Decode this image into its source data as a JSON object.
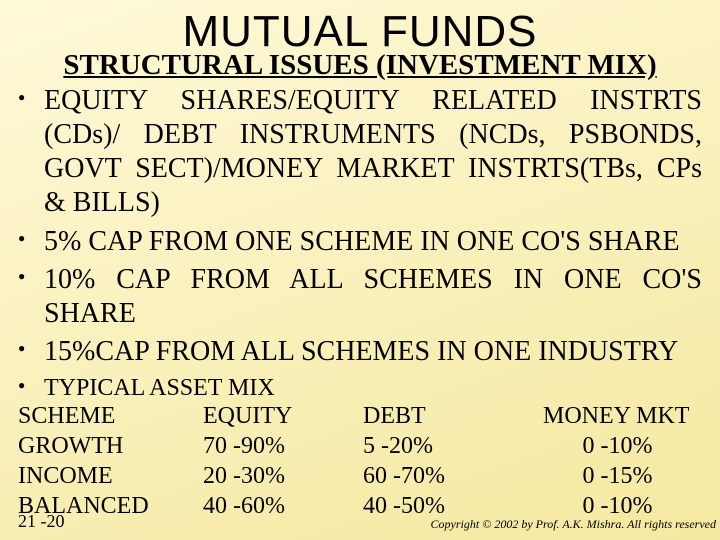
{
  "background_gradient": {
    "from": "#fef9d8",
    "to": "#f5e8a0",
    "angle_deg": 160
  },
  "title": "MUTUAL FUNDS",
  "subtitle": "STRUCTURAL ISSUES (INVESTMENT MIX)",
  "bullets": [
    "EQUITY SHARES/EQUITY RELATED INSTRTS (CDs)/ DEBT INSTRUMENTS (NCDs, PSBONDS, GOVT SECT)/MONEY MARKET INSTRTS(TBs, CPs & BILLS)",
    "5% CAP FROM ONE SCHEME IN ONE CO'S SHARE",
    "10% CAP FROM ALL SCHEMES IN ONE CO'S SHARE",
    "15%CAP FROM ALL SCHEMES IN ONE INDUSTRY"
  ],
  "small_bullet": "TYPICAL ASSET MIX",
  "asset_mix": {
    "columns": [
      "SCHEME",
      "EQUITY",
      "DEBT",
      "MONEY MKT"
    ],
    "rows": [
      [
        "GROWTH",
        "70 -90%",
        "5 -20%",
        "0 -10%"
      ],
      [
        "INCOME",
        "20 -30%",
        "60 -70%",
        "0 -15%"
      ],
      [
        "BALANCED",
        "40 -60%",
        "40 -50%",
        "0 -10%"
      ]
    ]
  },
  "footer": {
    "page": "21 -20",
    "copyright": "Copyright © 2002 by Prof. A.K. Mishra. All rights reserved"
  }
}
